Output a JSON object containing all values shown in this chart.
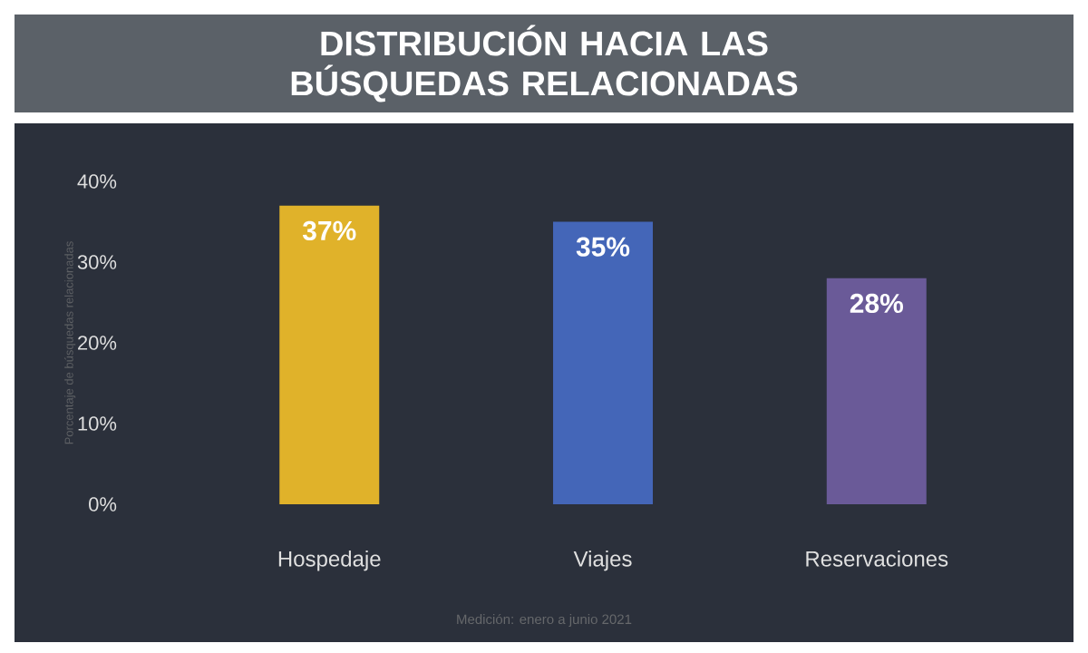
{
  "chart_data": {
    "type": "bar",
    "title": "DISTRIBUCIÓN HACIA LAS BÚSQUEDAS RELACIONADAS",
    "ylabel": "Porcentaje de búsquedas relacionadas",
    "categories": [
      "Hospedaje",
      "Viajes",
      "Reservaciones"
    ],
    "values": [
      37,
      35,
      28
    ],
    "colors": [
      "#e0b22a",
      "#4466b8",
      "#6a5a98"
    ],
    "value_labels": [
      "37%",
      "35%",
      "28%"
    ],
    "ylim": [
      0,
      40
    ],
    "yticks": [
      {
        "value": 0,
        "label": "0%"
      },
      {
        "value": 10,
        "label": "10%"
      },
      {
        "value": 20,
        "label": "20%"
      },
      {
        "value": 30,
        "label": "30%"
      },
      {
        "value": 40,
        "label": "40%"
      }
    ],
    "annotations": [
      "Medición: enero a junio 2021"
    ],
    "grid": false,
    "legend": false
  }
}
